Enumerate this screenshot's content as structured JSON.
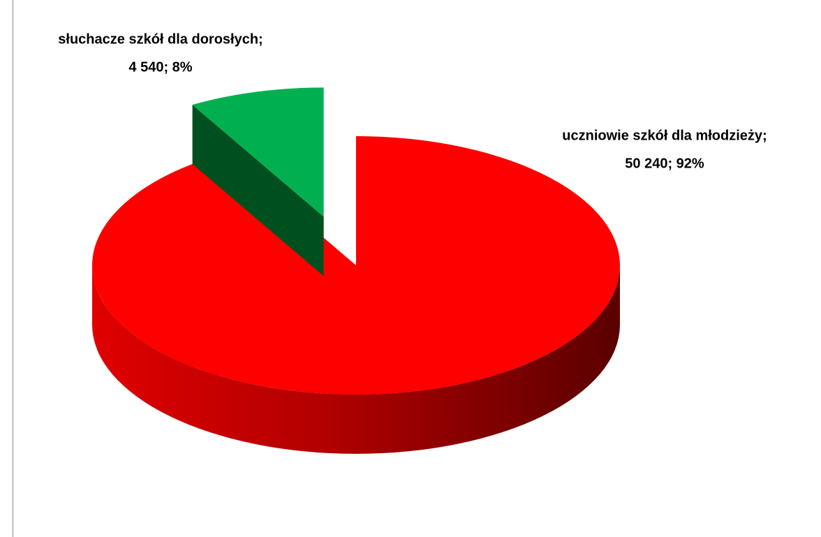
{
  "chart_data": {
    "type": "pie",
    "categories": [
      "słuchacze szkół dla dorosłych;",
      "uczniowie szkół dla młodzieży;"
    ],
    "values": [
      4540,
      50240
    ],
    "value_labels": [
      "4 540; 8%",
      "50 240; 92%"
    ],
    "colors": [
      "#00b050",
      "#ff0000"
    ],
    "side_colors": [
      "#00501f",
      "#6b0000"
    ]
  }
}
